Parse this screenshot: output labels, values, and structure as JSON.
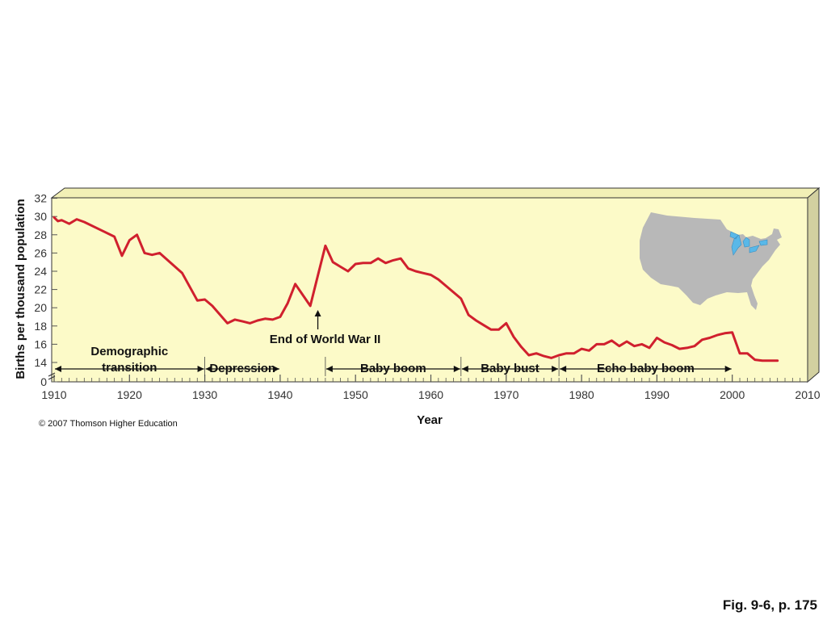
{
  "chart_data": {
    "type": "line",
    "title": "",
    "xlabel": "Year",
    "ylabel": "Births per thousand population",
    "xlim": [
      1910,
      2010
    ],
    "ylim": [
      12,
      32
    ],
    "y_axis_break": true,
    "x_ticks": [
      1910,
      1920,
      1930,
      1940,
      1950,
      1960,
      1970,
      1980,
      1990,
      2000,
      2010
    ],
    "y_ticks": [
      0,
      14,
      16,
      18,
      20,
      22,
      24,
      26,
      28,
      30,
      32
    ],
    "series": [
      {
        "color": "#d0202e",
        "x": [
          1910,
          1910.5,
          1911,
          1912,
          1913,
          1914,
          1918,
          1919,
          1920,
          1921,
          1922,
          1923,
          1924,
          1927,
          1929,
          1930,
          1931,
          1933,
          1934,
          1935,
          1936,
          1937,
          1938,
          1939,
          1940,
          1941,
          1942,
          1943,
          1944,
          1945,
          1946,
          1947,
          1948,
          1949,
          1950,
          1951,
          1952,
          1953,
          1954,
          1955,
          1956,
          1957,
          1958,
          1959,
          1960,
          1961,
          1962,
          1963,
          1964,
          1965,
          1966,
          1967,
          1968,
          1969,
          1970,
          1971,
          1972,
          1973,
          1974,
          1975,
          1976,
          1977,
          1978,
          1979,
          1980,
          1981,
          1982,
          1983,
          1984,
          1985,
          1986,
          1987,
          1988,
          1989,
          1990,
          1991,
          1992,
          1993,
          1994,
          1995,
          1996,
          1997,
          1998,
          1999,
          2000,
          2001,
          2002,
          2003,
          2004,
          2005,
          2006
        ],
        "values": [
          29.9,
          29.5,
          29.6,
          29.2,
          29.7,
          29.4,
          27.8,
          25.7,
          27.4,
          28.0,
          26.0,
          25.8,
          26.0,
          23.8,
          20.8,
          20.9,
          20.2,
          18.3,
          18.7,
          18.5,
          18.3,
          18.6,
          18.8,
          18.7,
          19.0,
          20.5,
          22.6,
          21.4,
          20.2,
          23.5,
          26.8,
          25.0,
          24.5,
          24.0,
          24.8,
          24.9,
          24.9,
          25.4,
          24.9,
          25.2,
          25.4,
          24.3,
          24.0,
          23.8,
          23.6,
          23.1,
          22.4,
          21.7,
          21.0,
          19.2,
          18.6,
          18.1,
          17.6,
          17.6,
          18.3,
          16.8,
          15.7,
          14.8,
          15.0,
          14.7,
          14.5,
          14.8,
          15.0,
          15.0,
          15.5,
          15.3,
          16.0,
          16.0,
          16.4,
          15.8,
          16.3,
          15.8,
          16.0,
          15.6,
          16.7,
          16.2,
          15.9,
          15.5,
          15.6,
          15.8,
          16.5,
          16.7,
          17.0,
          17.2,
          17.3,
          15.0,
          15.0,
          14.3,
          14.2,
          14.2,
          14.2
        ]
      }
    ],
    "annotations": [
      {
        "kind": "span",
        "from": 1910,
        "to": 1930,
        "label_lines": [
          "Demographic",
          "transition"
        ]
      },
      {
        "kind": "span",
        "from": 1930,
        "to": 1940,
        "label_lines": [
          "Depression"
        ]
      },
      {
        "kind": "span",
        "from": 1946,
        "to": 1964,
        "label_lines": [
          "Baby boom"
        ]
      },
      {
        "kind": "span",
        "from": 1964,
        "to": 1977,
        "label_lines": [
          "Baby bust"
        ]
      },
      {
        "kind": "span",
        "from": 1977,
        "to": 2000,
        "label_lines": [
          "Echo baby boom"
        ]
      },
      {
        "kind": "arrow",
        "at": 1945,
        "label": "End of World War II"
      }
    ],
    "map": "us-map-icon",
    "colors": {
      "plot_bg": "#fcfac8",
      "line": "#d0202e",
      "map_land": "#b8b8b8",
      "map_lakes": "#59b8e8"
    }
  },
  "footer": {
    "copyright": "© 2007 Thomson Higher Education",
    "caption": "Fig. 9-6, p. 175"
  }
}
